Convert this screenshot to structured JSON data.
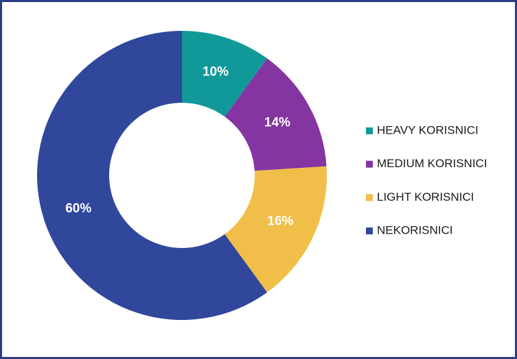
{
  "chart_data": {
    "type": "donut",
    "categories": [
      "HEAVY KORISNICI",
      "MEDIUM KORISNICI",
      "LIGHT KORISNICI",
      "NEKORISNICI"
    ],
    "values": [
      10,
      14,
      16,
      60
    ],
    "value_labels": [
      "10%",
      "14%",
      "16%",
      "60%"
    ],
    "colors": [
      "#11999a",
      "#8535a1",
      "#f1bf49",
      "#30479c"
    ],
    "legend": "right"
  }
}
